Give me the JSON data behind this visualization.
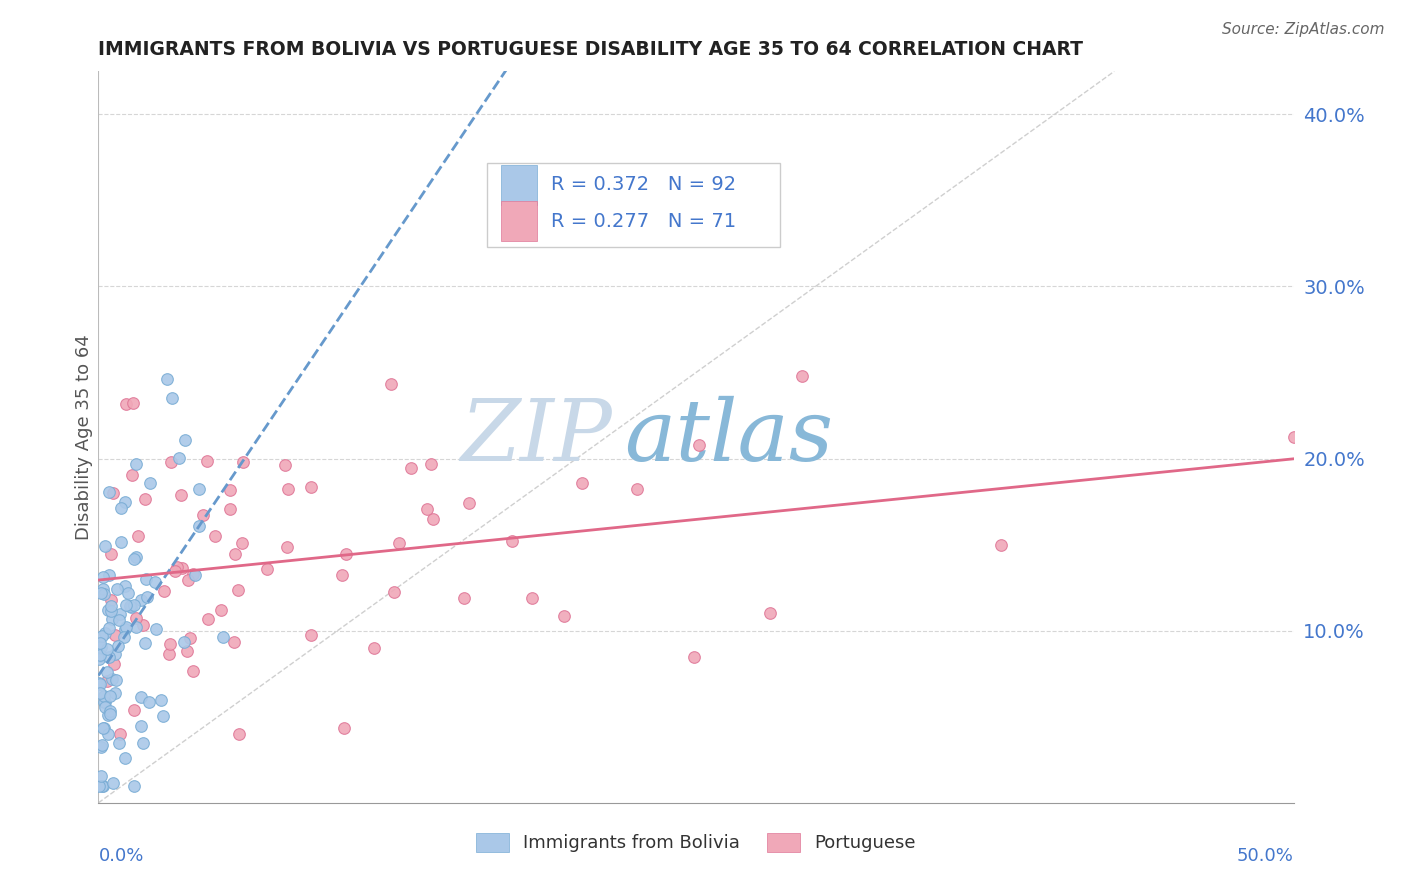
{
  "title": "IMMIGRANTS FROM BOLIVIA VS PORTUGUESE DISABILITY AGE 35 TO 64 CORRELATION CHART",
  "source": "Source: ZipAtlas.com",
  "xlim": [
    0.0,
    0.5
  ],
  "ylim": [
    0.0,
    0.425
  ],
  "series1_label": "Immigrants from Bolivia",
  "series1_R": 0.372,
  "series1_N": 92,
  "series1_color": "#aac8e8",
  "series1_edge_color": "#7aadd5",
  "series2_label": "Portuguese",
  "series2_R": 0.277,
  "series2_N": 71,
  "series2_color": "#f0a8b8",
  "series2_edge_color": "#e07898",
  "trend1_color": "#6699cc",
  "trend2_color": "#e06888",
  "watermark_zip": "ZIP",
  "watermark_atlas": "atlas",
  "watermark_zip_color": "#c8d8e8",
  "watermark_atlas_color": "#88b8d8",
  "background_color": "#ffffff",
  "grid_color": "#cccccc",
  "axis_label_color": "#4477cc",
  "ylabel": "Disability Age 35 to 64",
  "legend_R_color": "#4477cc",
  "legend_N_color": "#4477cc",
  "legend_box_edge": "#cccccc"
}
